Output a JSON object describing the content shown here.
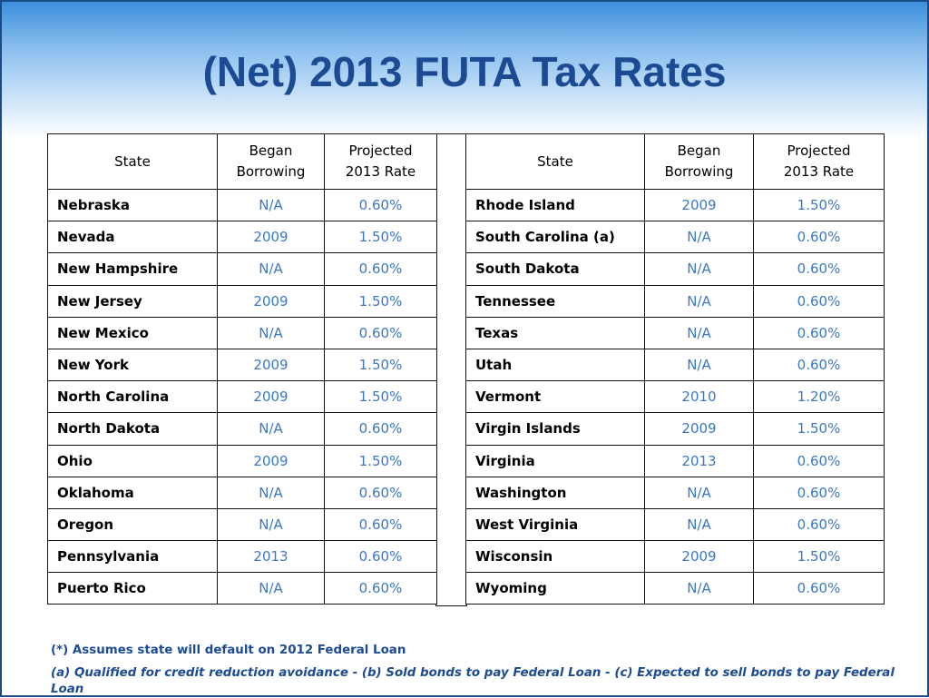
{
  "title": "(Net) 2013 FUTA Tax Rates",
  "headers": {
    "state": "State",
    "began_1": "Began",
    "began_2": "Borrowing",
    "proj_1": "Projected",
    "proj_2": "2013 Rate"
  },
  "left_rows": [
    {
      "state": "Nebraska",
      "began": "N/A",
      "rate": "0.60%"
    },
    {
      "state": "Nevada",
      "began": "2009",
      "rate": "1.50%"
    },
    {
      "state": "New Hampshire",
      "began": "N/A",
      "rate": "0.60%"
    },
    {
      "state": "New Jersey",
      "began": "2009",
      "rate": "1.50%"
    },
    {
      "state": "New Mexico",
      "began": "N/A",
      "rate": "0.60%"
    },
    {
      "state": "New York",
      "began": "2009",
      "rate": "1.50%"
    },
    {
      "state": "North Carolina",
      "began": "2009",
      "rate": "1.50%"
    },
    {
      "state": "North Dakota",
      "began": "N/A",
      "rate": "0.60%"
    },
    {
      "state": "Ohio",
      "began": "2009",
      "rate": "1.50%"
    },
    {
      "state": "Oklahoma",
      "began": "N/A",
      "rate": "0.60%"
    },
    {
      "state": "Oregon",
      "began": "N/A",
      "rate": "0.60%"
    },
    {
      "state": "Pennsylvania",
      "began": "2013",
      "rate": "0.60%"
    },
    {
      "state": "Puerto Rico",
      "began": "N/A",
      "rate": "0.60%"
    }
  ],
  "right_rows": [
    {
      "state": "Rhode Island",
      "began": "2009",
      "rate": "1.50%"
    },
    {
      "state": "South Carolina (a)",
      "began": "N/A",
      "rate": "0.60%"
    },
    {
      "state": "South Dakota",
      "began": "N/A",
      "rate": "0.60%"
    },
    {
      "state": "Tennessee",
      "began": "N/A",
      "rate": "0.60%"
    },
    {
      "state": "Texas",
      "began": "N/A",
      "rate": "0.60%"
    },
    {
      "state": "Utah",
      "began": "N/A",
      "rate": "0.60%"
    },
    {
      "state": "Vermont",
      "began": "2010",
      "rate": "1.20%"
    },
    {
      "state": "Virgin Islands",
      "began": "2009",
      "rate": "1.50%"
    },
    {
      "state": "Virginia",
      "began": "2013",
      "rate": "0.60%"
    },
    {
      "state": "Washington",
      "began": "N/A",
      "rate": "0.60%"
    },
    {
      "state": "West Virginia",
      "began": "N/A",
      "rate": "0.60%"
    },
    {
      "state": "Wisconsin",
      "began": "2009",
      "rate": "1.50%"
    },
    {
      "state": "Wyoming",
      "began": "N/A",
      "rate": "0.60%"
    }
  ],
  "footnotes": {
    "line1": "(*) Assumes state will default on 2012 Federal Loan",
    "line2": "(a) Qualified for credit reduction avoidance  -  (b) Sold bonds to pay Federal Loan   -  (c) Expected to sell bonds to pay Federal Loan"
  },
  "colors": {
    "title": "#1c4b93",
    "value_text": "#3c78c2",
    "border": "#1b4a86"
  }
}
